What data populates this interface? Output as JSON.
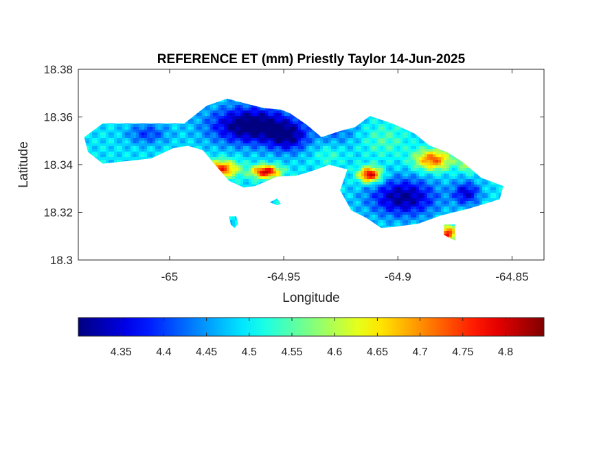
{
  "chart_data": {
    "type": "heatmap",
    "title": "REFERENCE ET (mm) Priestly Taylor 14-Jun-2025",
    "xlabel": "Longitude",
    "ylabel": "Latitude",
    "xlim": [
      -65.04,
      -64.836
    ],
    "ylim": [
      18.3,
      18.38
    ],
    "xticks": [
      -65,
      -64.95,
      -64.9,
      -64.85
    ],
    "xtick_labels": [
      "-65",
      "-64.95",
      "-64.9",
      "-64.85"
    ],
    "yticks": [
      18.3,
      18.32,
      18.34,
      18.36,
      18.38
    ],
    "ytick_labels": [
      "18.3",
      "18.32",
      "18.34",
      "18.36",
      "18.38"
    ],
    "colormap": "jet",
    "clim": [
      4.3,
      4.845
    ],
    "colorbar": {
      "location": "bottom",
      "ticks": [
        4.35,
        4.4,
        4.45,
        4.5,
        4.55,
        4.6,
        4.65,
        4.7,
        4.75,
        4.8
      ],
      "tick_labels": [
        "4.35",
        "4.4",
        "4.45",
        "4.5",
        "4.55",
        "4.6",
        "4.65",
        "4.7",
        "4.75",
        "4.8"
      ]
    },
    "land_outline": [
      [
        -65.0374,
        18.3515
      ],
      [
        -65.0293,
        18.3573
      ],
      [
        -65.0163,
        18.3573
      ],
      [
        -65.0049,
        18.3573
      ],
      [
        -64.9935,
        18.3573
      ],
      [
        -64.9838,
        18.3647
      ],
      [
        -64.9748,
        18.3677
      ],
      [
        -64.9675,
        18.3658
      ],
      [
        -64.9586,
        18.3637
      ],
      [
        -64.9513,
        18.3631
      ],
      [
        -64.9472,
        18.3615
      ],
      [
        -64.9399,
        18.3567
      ],
      [
        -64.9335,
        18.3515
      ],
      [
        -64.9253,
        18.3541
      ],
      [
        -64.9188,
        18.3557
      ],
      [
        -64.9123,
        18.3604
      ],
      [
        -64.9026,
        18.3573
      ],
      [
        -64.8928,
        18.3531
      ],
      [
        -64.8863,
        18.3481
      ],
      [
        -64.8782,
        18.3451
      ],
      [
        -64.8716,
        18.3411
      ],
      [
        -64.8635,
        18.3345
      ],
      [
        -64.8538,
        18.331
      ],
      [
        -64.8554,
        18.3255
      ],
      [
        -64.8684,
        18.3217
      ],
      [
        -64.8814,
        18.3186
      ],
      [
        -64.8912,
        18.3152
      ],
      [
        -64.9026,
        18.3138
      ],
      [
        -64.9074,
        18.3135
      ],
      [
        -64.9139,
        18.3177
      ],
      [
        -64.9204,
        18.3208
      ],
      [
        -64.9253,
        18.3292
      ],
      [
        -64.9221,
        18.338
      ],
      [
        -64.9302,
        18.3399
      ],
      [
        -64.9383,
        18.3371
      ],
      [
        -64.9448,
        18.3353
      ],
      [
        -64.9529,
        18.335
      ],
      [
        -64.9626,
        18.331
      ],
      [
        -64.9675,
        18.3304
      ],
      [
        -64.974,
        18.3332
      ],
      [
        -64.9805,
        18.3404
      ],
      [
        -64.9854,
        18.346
      ],
      [
        -64.9919,
        18.3479
      ],
      [
        -64.9984,
        18.3469
      ],
      [
        -65.0081,
        18.3426
      ],
      [
        -65.0195,
        18.3414
      ],
      [
        -65.0293,
        18.3404
      ],
      [
        -65.0358,
        18.3454
      ]
    ],
    "islets": [
      [
        [
          -64.9561,
          18.3242
        ],
        [
          -64.9529,
          18.3258
        ],
        [
          -64.9513,
          18.3236
        ],
        [
          -64.9529,
          18.323
        ]
      ],
      [
        [
          -64.974,
          18.3183
        ],
        [
          -64.9708,
          18.3183
        ],
        [
          -64.97,
          18.3152
        ],
        [
          -64.9716,
          18.3134
        ],
        [
          -64.9732,
          18.3149
        ]
      ],
      [
        [
          -64.8798,
          18.3149
        ],
        [
          -64.8749,
          18.3149
        ],
        [
          -64.8749,
          18.3081
        ],
        [
          -64.8798,
          18.3105
        ]
      ]
    ],
    "anomalies": [
      {
        "lon": -64.9643,
        "lat": 18.3565,
        "sx": 0.0124,
        "sy": 0.0055,
        "delta": -0.22
      },
      {
        "lon": -64.948,
        "lat": 18.3515,
        "sx": 0.0062,
        "sy": 0.0045,
        "delta": -0.14
      },
      {
        "lon": -64.9269,
        "lat": 18.354,
        "sx": 0.0068,
        "sy": 0.0042,
        "delta": -0.06
      },
      {
        "lon": -65.0098,
        "lat": 18.353,
        "sx": 0.0062,
        "sy": 0.0032,
        "delta": -0.09
      },
      {
        "lon": -64.9773,
        "lat": 18.3382,
        "sx": 0.0051,
        "sy": 0.0025,
        "delta": 0.26
      },
      {
        "lon": -64.9578,
        "lat": 18.337,
        "sx": 0.0042,
        "sy": 0.0019,
        "delta": 0.32
      },
      {
        "lon": -64.9123,
        "lat": 18.3357,
        "sx": 0.0033,
        "sy": 0.0022,
        "delta": 0.33
      },
      {
        "lon": -64.8847,
        "lat": 18.342,
        "sx": 0.0055,
        "sy": 0.003,
        "delta": 0.24
      },
      {
        "lon": -64.8684,
        "lat": 18.3422,
        "sx": 0.003,
        "sy": 0.003,
        "delta": 0.2
      },
      {
        "lon": -64.8977,
        "lat": 18.3262,
        "sx": 0.0104,
        "sy": 0.0056,
        "delta": -0.18
      },
      {
        "lon": -64.87,
        "lat": 18.328,
        "sx": 0.0042,
        "sy": 0.0035,
        "delta": -0.14
      },
      {
        "lon": -64.9058,
        "lat": 18.3505,
        "sx": 0.0068,
        "sy": 0.005,
        "delta": 0.05
      },
      {
        "lon": -64.8782,
        "lat": 18.311,
        "sx": 0.0026,
        "sy": 0.0025,
        "delta": 0.28
      },
      {
        "lon": -64.9302,
        "lat": 18.344,
        "sx": 0.0042,
        "sy": 0.0028,
        "delta": 0.04
      }
    ],
    "base_value": 4.49
  }
}
